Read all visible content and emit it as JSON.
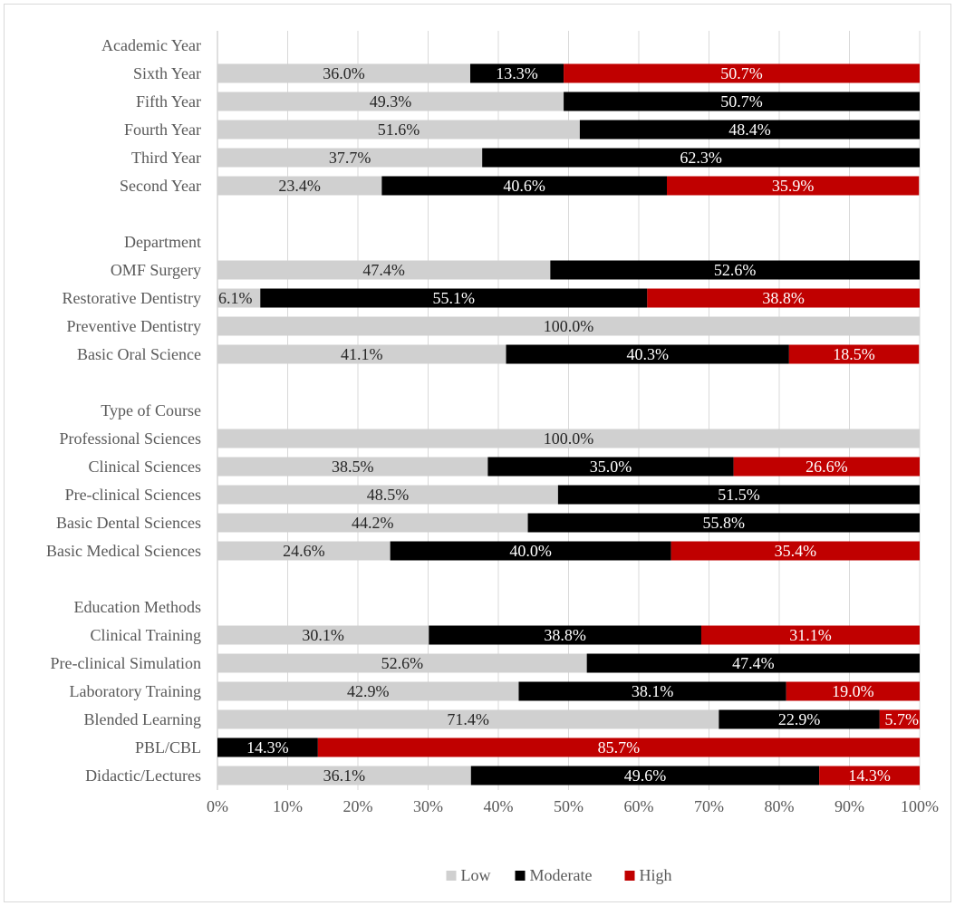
{
  "chart_data": {
    "type": "bar",
    "orientation": "horizontal",
    "stacked": true,
    "title": "",
    "xlabel": "",
    "ylabel": "",
    "xlim": [
      0,
      100
    ],
    "x_ticks": [
      "0%",
      "10%",
      "20%",
      "30%",
      "40%",
      "50%",
      "60%",
      "70%",
      "80%",
      "90%",
      "100%"
    ],
    "grid": "vertical",
    "legend_position": "bottom",
    "colors": {
      "Low": "#d0d0d0",
      "Moderate": "#000000",
      "High": "#c00000"
    },
    "series_names": [
      "Low",
      "Moderate",
      "High"
    ],
    "groups": [
      {
        "header": "Academic Year",
        "rows": [
          {
            "label": "Sixth Year",
            "values": [
              36.0,
              13.3,
              50.7
            ],
            "labels": [
              "36.0%",
              "13.3%",
              "50.7%"
            ]
          },
          {
            "label": "Fifth Year",
            "values": [
              49.3,
              50.7,
              0
            ],
            "labels": [
              "49.3%",
              "50.7%",
              ""
            ]
          },
          {
            "label": "Fourth Year",
            "values": [
              51.6,
              48.4,
              0
            ],
            "labels": [
              "51.6%",
              "48.4%",
              ""
            ]
          },
          {
            "label": "Third Year",
            "values": [
              37.7,
              62.3,
              0
            ],
            "labels": [
              "37.7%",
              "62.3%",
              ""
            ]
          },
          {
            "label": "Second Year",
            "values": [
              23.4,
              40.6,
              35.9
            ],
            "labels": [
              "23.4%",
              "40.6%",
              "35.9%"
            ]
          }
        ]
      },
      {
        "header": "Department",
        "rows": [
          {
            "label": "OMF Surgery",
            "values": [
              47.4,
              52.6,
              0
            ],
            "labels": [
              "47.4%",
              "52.6%",
              ""
            ]
          },
          {
            "label": "Restorative Dentistry",
            "values": [
              6.1,
              55.1,
              38.8
            ],
            "labels": [
              "6.1%",
              "55.1%",
              "38.8%"
            ]
          },
          {
            "label": "Preventive Dentistry",
            "values": [
              100.0,
              0,
              0
            ],
            "labels": [
              "100.0%",
              "",
              ""
            ]
          },
          {
            "label": "Basic Oral Science",
            "values": [
              41.1,
              40.3,
              18.5
            ],
            "labels": [
              "41.1%",
              "40.3%",
              "18.5%"
            ]
          }
        ]
      },
      {
        "header": "Type of Course",
        "rows": [
          {
            "label": "Professional Sciences",
            "values": [
              100.0,
              0,
              0
            ],
            "labels": [
              "100.0%",
              "",
              ""
            ]
          },
          {
            "label": "Clinical Sciences",
            "values": [
              38.5,
              35.0,
              26.6
            ],
            "labels": [
              "38.5%",
              "35.0%",
              "26.6%"
            ]
          },
          {
            "label": "Pre-clinical Sciences",
            "values": [
              48.5,
              51.5,
              0
            ],
            "labels": [
              "48.5%",
              "51.5%",
              ""
            ]
          },
          {
            "label": "Basic Dental Sciences",
            "values": [
              44.2,
              55.8,
              0
            ],
            "labels": [
              "44.2%",
              "55.8%",
              ""
            ]
          },
          {
            "label": "Basic Medical Sciences",
            "values": [
              24.6,
              40.0,
              35.4
            ],
            "labels": [
              "24.6%",
              "40.0%",
              "35.4%"
            ]
          }
        ]
      },
      {
        "header": "Education Methods",
        "rows": [
          {
            "label": "Clinical Training",
            "values": [
              30.1,
              38.8,
              31.1
            ],
            "labels": [
              "30.1%",
              "38.8%",
              "31.1%"
            ]
          },
          {
            "label": "Pre-clinical Simulation",
            "values": [
              52.6,
              47.4,
              0
            ],
            "labels": [
              "52.6%",
              "47.4%",
              ""
            ]
          },
          {
            "label": "Laboratory Training",
            "values": [
              42.9,
              38.1,
              19.0
            ],
            "labels": [
              "42.9%",
              "38.1%",
              "19.0%"
            ]
          },
          {
            "label": "Blended Learning",
            "values": [
              71.4,
              22.9,
              5.7
            ],
            "labels": [
              "71.4%",
              "22.9%",
              "5.7%"
            ]
          },
          {
            "label": "PBL/CBL",
            "values": [
              0,
              14.3,
              85.7
            ],
            "labels": [
              "",
              "14.3%",
              "85.7%"
            ]
          },
          {
            "label": "Didactic/Lectures",
            "values": [
              36.1,
              49.6,
              14.3
            ],
            "labels": [
              "36.1%",
              "49.6%",
              "14.3%"
            ]
          }
        ]
      }
    ]
  }
}
